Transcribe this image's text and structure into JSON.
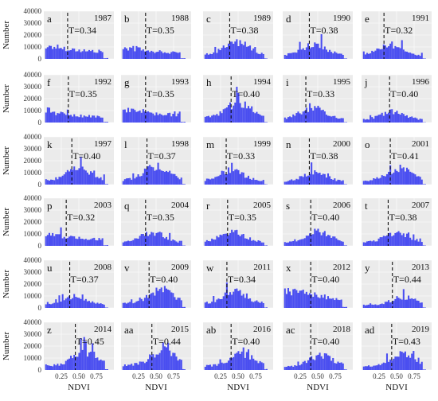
{
  "chart_data": {
    "type": "bar",
    "layout": "small-multiples",
    "grid_rows": 6,
    "grid_cols": 5,
    "xlabel": "NDVI",
    "ylabel": "Number",
    "x_ticks": [
      "0.25",
      "0.50",
      "0.75"
    ],
    "x_tick_values": [
      0.25,
      0.5,
      0.75
    ],
    "y_ticks": [
      "0",
      "10000",
      "20000",
      "30000",
      "40000"
    ],
    "y_tick_values": [
      0,
      10000,
      20000,
      30000,
      40000
    ],
    "xlim": [
      0,
      1
    ],
    "ylim": [
      0,
      40000
    ],
    "grid": true,
    "bar_color": "#4a4ef0",
    "background_color": "#ebebeb",
    "threshold_style": "dashed",
    "panels": [
      {
        "letter": "a",
        "year": "1987",
        "t_label": "T=0.34",
        "threshold": 0.34,
        "shape": "decay",
        "peak": 10000,
        "mode": 0.2
      },
      {
        "letter": "b",
        "year": "1988",
        "t_label": "T=0.35",
        "threshold": 0.35,
        "shape": "decay",
        "peak": 9000,
        "mode": 0.15
      },
      {
        "letter": "c",
        "year": "1989",
        "t_label": "T=0.38",
        "threshold": 0.38,
        "shape": "hump",
        "peak": 14000,
        "mode": 0.48
      },
      {
        "letter": "d",
        "year": "1990",
        "t_label": "T=0.38",
        "threshold": 0.38,
        "shape": "hump",
        "peak": 12000,
        "mode": 0.45
      },
      {
        "letter": "e",
        "year": "1991",
        "t_label": "T=0.32",
        "threshold": 0.32,
        "shape": "hump",
        "peak": 12000,
        "mode": 0.4
      },
      {
        "letter": "f",
        "year": "1992",
        "t_label": "T=0.35",
        "threshold": 0.35,
        "shape": "decay",
        "peak": 8000,
        "mode": 0.2
      },
      {
        "letter": "g",
        "year": "1993",
        "t_label": "T=0.35",
        "threshold": 0.35,
        "shape": "decay",
        "peak": 10000,
        "mode": 0.25
      },
      {
        "letter": "h",
        "year": "1994",
        "t_label": "T=0.40",
        "threshold": 0.4,
        "shape": "hump",
        "peak": 16000,
        "mode": 0.5
      },
      {
        "letter": "i",
        "year": "1995",
        "t_label": "T=0.33",
        "threshold": 0.33,
        "shape": "hump",
        "peak": 12000,
        "mode": 0.42
      },
      {
        "letter": "j",
        "year": "1996",
        "t_label": "T=0.40",
        "threshold": 0.4,
        "shape": "hump",
        "peak": 9000,
        "mode": 0.45
      },
      {
        "letter": "k",
        "year": "1997",
        "t_label": "T=0.40",
        "threshold": 0.4,
        "shape": "hump",
        "peak": 14000,
        "mode": 0.5
      },
      {
        "letter": "l",
        "year": "1998",
        "t_label": "T=0.37",
        "threshold": 0.37,
        "shape": "hump",
        "peak": 15000,
        "mode": 0.5
      },
      {
        "letter": "m",
        "year": "1999",
        "t_label": "T=0.33",
        "threshold": 0.33,
        "shape": "hump",
        "peak": 12000,
        "mode": 0.4
      },
      {
        "letter": "n",
        "year": "2000",
        "t_label": "T=0.38",
        "threshold": 0.38,
        "shape": "hump",
        "peak": 10000,
        "mode": 0.45
      },
      {
        "letter": "o",
        "year": "2001",
        "t_label": "T=0.41",
        "threshold": 0.41,
        "shape": "hump",
        "peak": 14000,
        "mode": 0.55
      },
      {
        "letter": "p",
        "year": "2003",
        "t_label": "T=0.32",
        "threshold": 0.32,
        "shape": "decay",
        "peak": 9000,
        "mode": 0.2
      },
      {
        "letter": "q",
        "year": "2004",
        "t_label": "T=0.35",
        "threshold": 0.35,
        "shape": "hump",
        "peak": 11000,
        "mode": 0.45
      },
      {
        "letter": "r",
        "year": "2005",
        "t_label": "T=0.35",
        "threshold": 0.35,
        "shape": "hump",
        "peak": 12000,
        "mode": 0.42
      },
      {
        "letter": "s",
        "year": "2006",
        "t_label": "T=0.40",
        "threshold": 0.4,
        "shape": "hump",
        "peak": 12000,
        "mode": 0.5
      },
      {
        "letter": "t",
        "year": "2007",
        "t_label": "T=0.38",
        "threshold": 0.38,
        "shape": "hump",
        "peak": 11000,
        "mode": 0.5
      },
      {
        "letter": "u",
        "year": "2008",
        "t_label": "T=0.37",
        "threshold": 0.37,
        "shape": "hump",
        "peak": 10000,
        "mode": 0.45
      },
      {
        "letter": "v",
        "year": "2009",
        "t_label": "T=0.40",
        "threshold": 0.4,
        "shape": "hump",
        "peak": 15000,
        "mode": 0.58
      },
      {
        "letter": "w",
        "year": "2011",
        "t_label": "T=0.34",
        "threshold": 0.34,
        "shape": "hump",
        "peak": 14000,
        "mode": 0.45
      },
      {
        "letter": "x",
        "year": "2012",
        "t_label": "T=0.40",
        "threshold": 0.4,
        "shape": "decay",
        "peak": 14000,
        "mode": 0.2
      },
      {
        "letter": "y",
        "year": "2013",
        "t_label": "T=0.44",
        "threshold": 0.44,
        "shape": "hump",
        "peak": 9000,
        "mode": 0.6
      },
      {
        "letter": "z",
        "year": "2014",
        "t_label": "T=0.45",
        "threshold": 0.45,
        "shape": "hump",
        "peak": 15000,
        "mode": 0.6
      },
      {
        "letter": "aa",
        "year": "2015",
        "t_label": "T=0.44",
        "threshold": 0.44,
        "shape": "hump",
        "peak": 16000,
        "mode": 0.6
      },
      {
        "letter": "ab",
        "year": "2016",
        "t_label": "T=0.40",
        "threshold": 0.4,
        "shape": "hump",
        "peak": 13000,
        "mode": 0.55
      },
      {
        "letter": "ac",
        "year": "2018",
        "t_label": "T=0.40",
        "threshold": 0.4,
        "shape": "hump",
        "peak": 12000,
        "mode": 0.55
      },
      {
        "letter": "ad",
        "year": "2019",
        "t_label": "T=0.43",
        "threshold": 0.43,
        "shape": "hump",
        "peak": 13000,
        "mode": 0.58
      }
    ]
  }
}
